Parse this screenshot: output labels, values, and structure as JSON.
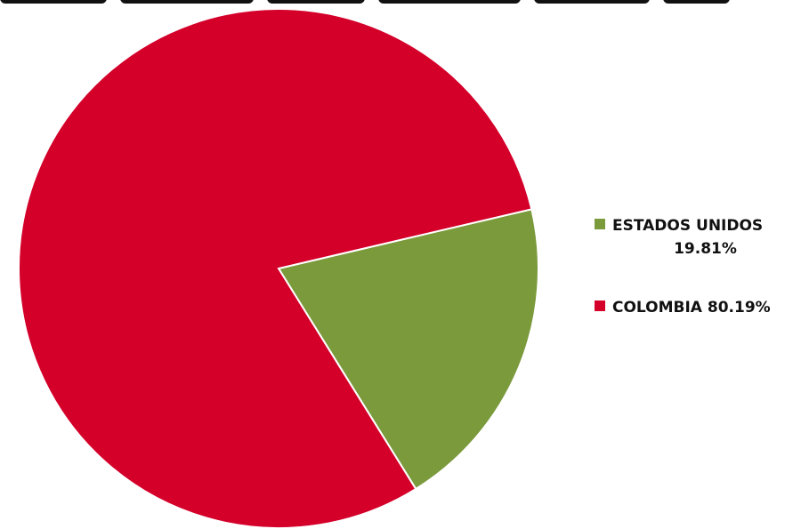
{
  "chart_data": {
    "type": "pie",
    "title": "",
    "categories": [
      "ESTADOS UNIDOS",
      "COLOMBIA"
    ],
    "values": [
      19.81,
      80.19
    ],
    "colors": [
      "#7a9a3c",
      "#d4002a"
    ],
    "labels": [
      {
        "name": "ESTADOS UNIDOS",
        "pct": "19.81%"
      },
      {
        "name": "COLOMBIA",
        "pct": "80.19%"
      }
    ],
    "legend_position": "right"
  }
}
